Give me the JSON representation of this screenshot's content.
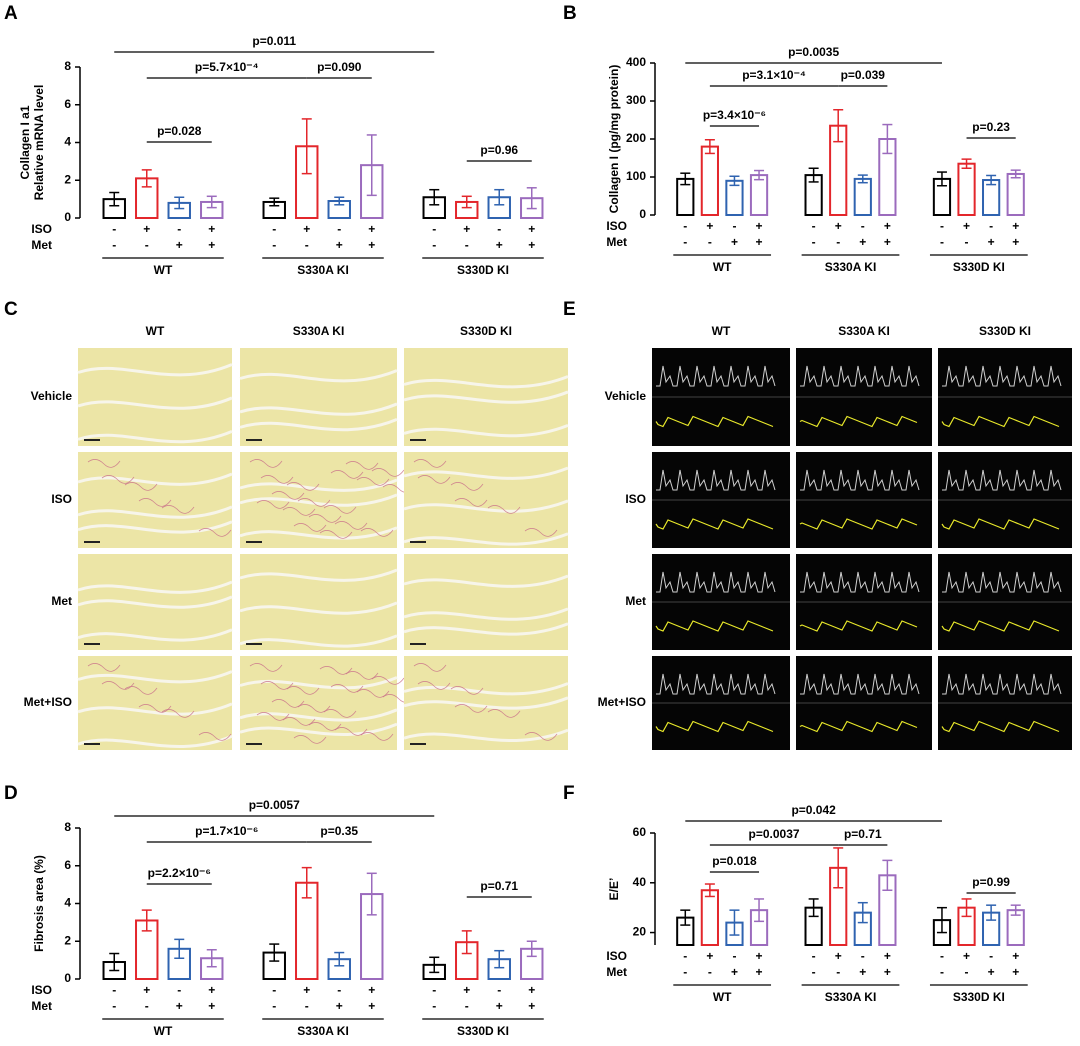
{
  "chart_data": [
    {
      "type": "bar",
      "label": "A",
      "ylabel": [
        "Collagen I a1",
        "Relative mRNA level"
      ],
      "ylim": [
        0,
        8
      ],
      "yticks": [
        0,
        2,
        4,
        6,
        8
      ],
      "groups": [
        "WT",
        "S330A KI",
        "S330D KI"
      ],
      "row_labels": [
        "ISO",
        "Met"
      ],
      "iso_signs": [
        "-",
        "+",
        "-",
        "+"
      ],
      "met_signs": [
        "-",
        "-",
        "+",
        "+"
      ],
      "series": [
        {
          "color": "#000000",
          "values": [
            1.0,
            0.85,
            1.1
          ],
          "errors": [
            0.35,
            0.2,
            0.4
          ]
        },
        {
          "color": "#e3262b",
          "values": [
            2.1,
            3.8,
            0.85
          ],
          "errors": [
            0.45,
            1.45,
            0.3
          ]
        },
        {
          "color": "#2f63b0",
          "values": [
            0.8,
            0.9,
            1.1
          ],
          "errors": [
            0.3,
            0.2,
            0.4
          ]
        },
        {
          "color": "#9b6bbd",
          "values": [
            0.85,
            2.8,
            1.05
          ],
          "errors": [
            0.3,
            1.6,
            0.55
          ]
        }
      ],
      "annotations": [
        "p=0.011",
        "p=5.7×10⁻⁴",
        "p=0.090",
        "p=0.028",
        "p=0.96"
      ]
    },
    {
      "type": "bar",
      "label": "B",
      "ylabel": [
        "Collagen I (pg/mg protein)"
      ],
      "ylim": [
        0,
        400
      ],
      "yticks": [
        0,
        100,
        200,
        300,
        400
      ],
      "groups": [
        "WT",
        "S330A KI",
        "S330D KI"
      ],
      "row_labels": [
        "ISO",
        "Met"
      ],
      "iso_signs": [
        "-",
        "+",
        "-",
        "+"
      ],
      "met_signs": [
        "-",
        "-",
        "+",
        "+"
      ],
      "series": [
        {
          "color": "#000000",
          "values": [
            95,
            105,
            95
          ],
          "errors": [
            15,
            18,
            18
          ]
        },
        {
          "color": "#e3262b",
          "values": [
            180,
            235,
            135
          ],
          "errors": [
            18,
            42,
            12
          ]
        },
        {
          "color": "#2f63b0",
          "values": [
            90,
            95,
            92
          ],
          "errors": [
            12,
            10,
            12
          ]
        },
        {
          "color": "#9b6bbd",
          "values": [
            105,
            200,
            108
          ],
          "errors": [
            12,
            38,
            10
          ]
        }
      ],
      "annotations": [
        "p=0.0035",
        "p=3.1×10⁻⁴",
        "p=0.039",
        "p=3.4×10⁻⁶",
        "p=0.23"
      ]
    },
    {
      "type": "bar",
      "label": "D",
      "ylabel": [
        "Fibrosis area (%)"
      ],
      "ylim": [
        0,
        8
      ],
      "yticks": [
        0,
        2,
        4,
        6,
        8
      ],
      "groups": [
        "WT",
        "S330A KI",
        "S330D KI"
      ],
      "row_labels": [
        "ISO",
        "Met"
      ],
      "iso_signs": [
        "-",
        "+",
        "-",
        "+"
      ],
      "met_signs": [
        "-",
        "-",
        "+",
        "+"
      ],
      "series": [
        {
          "color": "#000000",
          "values": [
            0.9,
            1.4,
            0.75
          ],
          "errors": [
            0.45,
            0.45,
            0.4
          ]
        },
        {
          "color": "#e3262b",
          "values": [
            3.1,
            5.1,
            1.95
          ],
          "errors": [
            0.55,
            0.8,
            0.6
          ]
        },
        {
          "color": "#2f63b0",
          "values": [
            1.6,
            1.05,
            1.05
          ],
          "errors": [
            0.5,
            0.35,
            0.45
          ]
        },
        {
          "color": "#9b6bbd",
          "values": [
            1.1,
            4.5,
            1.6
          ],
          "errors": [
            0.45,
            1.1,
            0.4
          ]
        }
      ],
      "annotations": [
        "p=0.0057",
        "p=1.7×10⁻⁶",
        "p=0.35",
        "p=2.2×10⁻⁶",
        "p=0.71"
      ]
    },
    {
      "type": "bar",
      "label": "F",
      "ylabel": [
        "E/E’"
      ],
      "ylim": [
        15,
        60
      ],
      "yticks": [
        20,
        40,
        60
      ],
      "groups": [
        "WT",
        "S330A KI",
        "S330D KI"
      ],
      "row_labels": [
        "ISO",
        "Met"
      ],
      "iso_signs": [
        "-",
        "+",
        "-",
        "+"
      ],
      "met_signs": [
        "-",
        "-",
        "+",
        "+"
      ],
      "series": [
        {
          "color": "#000000",
          "values": [
            26,
            30,
            25
          ],
          "errors": [
            3,
            3.5,
            5
          ]
        },
        {
          "color": "#e3262b",
          "values": [
            37,
            46,
            30
          ],
          "errors": [
            2.5,
            8,
            3.5
          ]
        },
        {
          "color": "#2f63b0",
          "values": [
            24,
            28,
            28
          ],
          "errors": [
            5,
            4,
            3
          ]
        },
        {
          "color": "#9b6bbd",
          "values": [
            29,
            43,
            29
          ],
          "errors": [
            4.5,
            6,
            2
          ]
        }
      ],
      "annotations": [
        "p=0.042",
        "p=0.0037",
        "p=0.71",
        "p=0.018",
        "p=0.99"
      ]
    }
  ],
  "panels": [
    {
      "label": "C",
      "columns": [
        "WT",
        "S330A KI",
        "S330D KI"
      ],
      "rows": [
        "Vehicle",
        "ISO",
        "Met",
        "Met+ISO"
      ]
    },
    {
      "label": "E",
      "columns": [
        "WT",
        "S330A KI",
        "S330D KI"
      ],
      "rows": [
        "Vehicle",
        "ISO",
        "Met",
        "Met+ISO"
      ]
    }
  ]
}
